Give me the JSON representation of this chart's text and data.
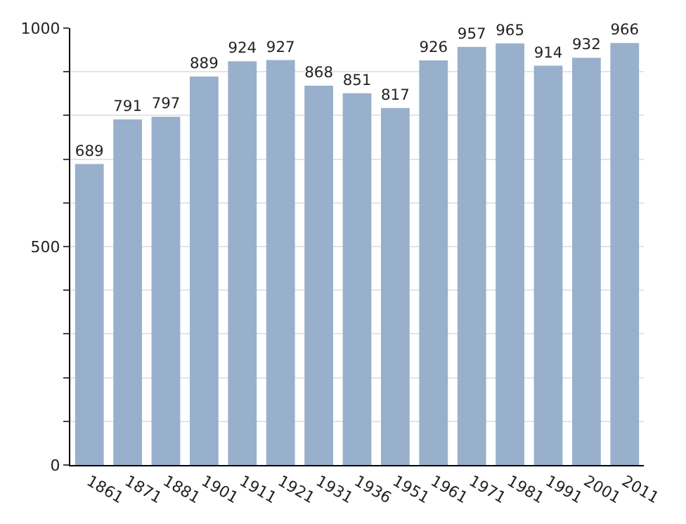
{
  "chart_data": {
    "type": "bar",
    "categories": [
      "1861",
      "1871",
      "1881",
      "1901",
      "1911",
      "1921",
      "1931",
      "1936",
      "1951",
      "1961",
      "1971",
      "1981",
      "1991",
      "2001",
      "2011"
    ],
    "values": [
      689,
      791,
      797,
      889,
      924,
      927,
      868,
      851,
      817,
      926,
      957,
      965,
      914,
      932,
      966
    ],
    "color": "#98b0cc",
    "data_labels": true,
    "ylim": [
      0,
      1000
    ],
    "yticks": [
      0,
      {
        "value": 100,
        "label": null
      },
      {
        "value": 200,
        "label": null
      },
      {
        "value": 300,
        "label": null
      },
      {
        "value": 400,
        "label": null
      },
      500,
      {
        "value": 600,
        "label": null
      },
      {
        "value": 700,
        "label": null
      },
      {
        "value": 800,
        "label": null
      },
      {
        "value": 900,
        "label": null
      },
      1000
    ],
    "grid": "y"
  }
}
